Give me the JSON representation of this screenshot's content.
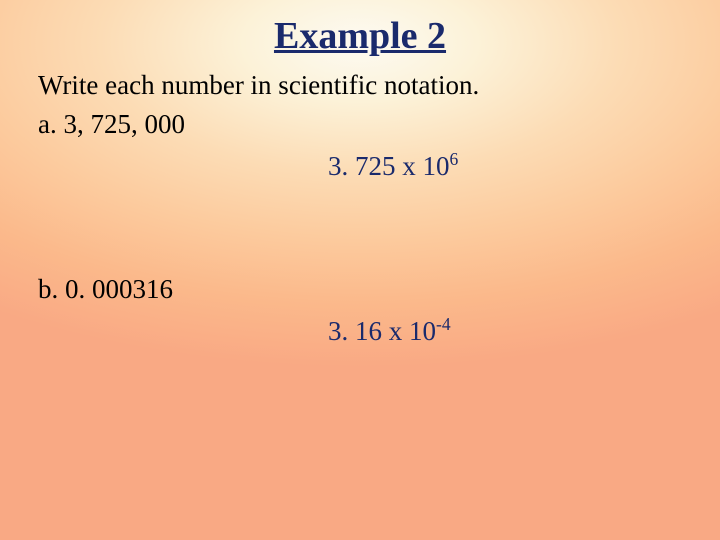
{
  "title": "Example 2",
  "title_color": "#1a2a6c",
  "title_fontsize": 38,
  "body_fontsize": 27,
  "answer_color": "#1a2a6c",
  "font_family": "Times New Roman",
  "background_gradient": {
    "type": "radial",
    "center": "50% 8%",
    "stops": [
      "#fdfaf2",
      "#fcf2d8",
      "#fcdcb5",
      "#fccb9e",
      "#fbb98b",
      "#f9a984"
    ]
  },
  "instruction": "Write each number in scientific notation.",
  "items": [
    {
      "label": "a.  3, 725, 000",
      "answer_prefix": "3. 725 x 10",
      "answer_exponent": "6"
    },
    {
      "label": "b.  0. 000316",
      "answer_prefix": "3. 16 x 10",
      "answer_exponent": "-4"
    }
  ]
}
